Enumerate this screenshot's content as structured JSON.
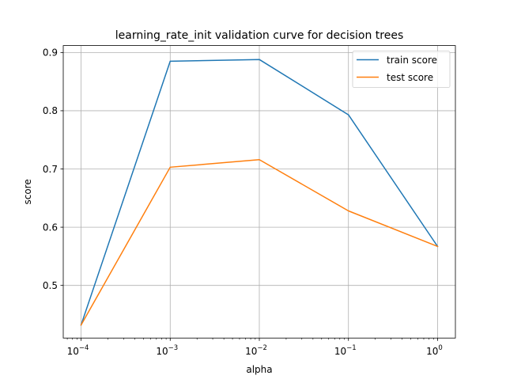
{
  "chart_data": {
    "type": "line",
    "title": "learning_rate_init validation curve for decision trees",
    "xlabel": "alpha",
    "ylabel": "score",
    "xscale": "log",
    "x": [
      0.0001,
      0.001,
      0.01,
      0.1,
      1
    ],
    "x_tick_labels": [
      {
        "base": "10",
        "exp": "−4"
      },
      {
        "base": "10",
        "exp": "−3"
      },
      {
        "base": "10",
        "exp": "−2"
      },
      {
        "base": "10",
        "exp": "−1"
      },
      {
        "base": "10",
        "exp": "0"
      }
    ],
    "y_ticks": [
      0.5,
      0.6,
      0.7,
      0.8,
      0.9
    ],
    "y_tick_labels": [
      "0.5",
      "0.6",
      "0.7",
      "0.8",
      "0.9"
    ],
    "ylim": [
      0.4096,
      0.9119
    ],
    "xlim_log10": [
      -4.2,
      0.2
    ],
    "grid": true,
    "legend_position": "top-right",
    "series": [
      {
        "name": "train score",
        "color": "#1f77b4",
        "values": [
          0.432,
          0.885,
          0.888,
          0.793,
          0.567
        ]
      },
      {
        "name": "test score",
        "color": "#ff7f0e",
        "values": [
          0.432,
          0.703,
          0.716,
          0.628,
          0.567
        ]
      }
    ]
  }
}
